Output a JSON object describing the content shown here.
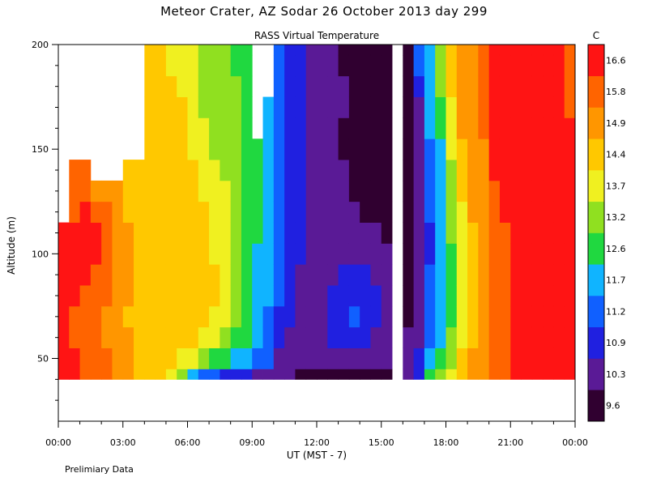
{
  "header": {
    "title": "Meteor Crater, AZ  Sodar  26 October 2013  day 299",
    "subtitle": "RASS Virtual Temperature",
    "footnote": "Prelimiary Data"
  },
  "chart_data": {
    "type": "heatmap",
    "title": "Meteor Crater, AZ  Sodar  26 October 2013  day 299",
    "subtitle": "RASS Virtual Temperature",
    "xlabel": "UT  (MST - 7)",
    "ylabel": "Altitude (m)",
    "x_tick_labels": [
      "00:00",
      "03:00",
      "06:00",
      "09:00",
      "12:00",
      "15:00",
      "18:00",
      "21:00",
      "00:00"
    ],
    "x_ticks_hours": [
      0,
      3,
      6,
      9,
      12,
      15,
      18,
      21,
      24
    ],
    "xlim_hours": [
      0,
      24
    ],
    "y_ticks": [
      50,
      100,
      150,
      200
    ],
    "ylim": [
      20,
      200
    ],
    "colorbar": {
      "unit": "C",
      "labels": [
        "9.6",
        "10.3",
        "10.9",
        "11.2",
        "11.7",
        "12.6",
        "13.2",
        "13.7",
        "14.4",
        "14.9",
        "15.8",
        "16.6"
      ],
      "bins": [
        {
          "min": 9.6,
          "color": "#300030"
        },
        {
          "min": 10.3,
          "color": "#5a1a96"
        },
        {
          "min": 10.9,
          "color": "#2020e0"
        },
        {
          "min": 11.2,
          "color": "#1060ff"
        },
        {
          "min": 11.7,
          "color": "#10b4ff"
        },
        {
          "min": 12.6,
          "color": "#20d840"
        },
        {
          "min": 13.2,
          "color": "#90e020"
        },
        {
          "min": 13.7,
          "color": "#f0f020"
        },
        {
          "min": 14.4,
          "color": "#ffc800"
        },
        {
          "min": 14.9,
          "color": "#ff9600"
        },
        {
          "min": 15.8,
          "color": "#ff6400"
        },
        {
          "min": 16.6,
          "color": "#ff1414"
        }
      ]
    },
    "altitudes_m": [
      40,
      50,
      60,
      70,
      80,
      90,
      100,
      110,
      120,
      130,
      140,
      150,
      160,
      170,
      180,
      190,
      200
    ],
    "times_hours": [
      0,
      0.5,
      1,
      1.5,
      2,
      2.5,
      3,
      3.5,
      4,
      4.5,
      5,
      5.5,
      6,
      6.5,
      7,
      7.5,
      8,
      8.5,
      9,
      9.5,
      10,
      10.5,
      11,
      11.5,
      12,
      12.5,
      13,
      13.5,
      14,
      14.5,
      15,
      15.5,
      16,
      16.5,
      17,
      17.5,
      18,
      18.5,
      19,
      19.5,
      20,
      20.5,
      21,
      21.5,
      22,
      22.5,
      23,
      23.5
    ],
    "temperature_profiles_c": [
      [
        16.7,
        16.7,
        16.7,
        16.7,
        16.7,
        16.7,
        16.7,
        16.7,
        null,
        null,
        null,
        null,
        null,
        null,
        null,
        null,
        null
      ],
      [
        16.6,
        16.6,
        16.0,
        16.0,
        16.6,
        16.6,
        16.6,
        16.6,
        16.0,
        16.0,
        16.0,
        null,
        null,
        null,
        null,
        null,
        null
      ],
      [
        16.2,
        16.0,
        15.9,
        15.9,
        16.0,
        16.6,
        16.6,
        16.6,
        16.6,
        16.0,
        16.0,
        null,
        null,
        null,
        null,
        null,
        null
      ],
      [
        16.0,
        15.9,
        15.8,
        15.8,
        15.9,
        16.0,
        16.6,
        16.6,
        16.0,
        15.0,
        null,
        null,
        null,
        null,
        null,
        null,
        null
      ],
      [
        15.9,
        15.8,
        15.6,
        15.6,
        15.8,
        15.9,
        16.0,
        16.0,
        15.9,
        14.9,
        null,
        null,
        null,
        null,
        null,
        null,
        null
      ],
      [
        15.5,
        15.2,
        15.0,
        14.9,
        15.0,
        15.2,
        15.5,
        15.5,
        15.0,
        14.9,
        null,
        null,
        null,
        null,
        null,
        null,
        null
      ],
      [
        15.0,
        14.9,
        14.9,
        14.8,
        14.9,
        15.0,
        15.0,
        14.9,
        14.8,
        14.8,
        14.5,
        null,
        null,
        null,
        null,
        null,
        null
      ],
      [
        14.5,
        14.6,
        14.6,
        14.6,
        14.6,
        14.5,
        14.5,
        14.6,
        14.6,
        14.5,
        14.5,
        null,
        null,
        null,
        null,
        null,
        null
      ],
      [
        14.4,
        14.5,
        14.4,
        14.4,
        14.4,
        14.4,
        14.4,
        14.5,
        14.5,
        14.5,
        14.5,
        14.5,
        14.5,
        14.5,
        14.5,
        14.5,
        14.5
      ],
      [
        14.4,
        14.4,
        14.4,
        14.4,
        14.4,
        14.4,
        14.4,
        14.4,
        14.4,
        14.4,
        14.4,
        14.4,
        14.5,
        14.5,
        14.5,
        14.5,
        14.5
      ],
      [
        14.3,
        14.4,
        14.4,
        14.4,
        14.4,
        14.4,
        14.4,
        14.4,
        14.4,
        14.4,
        14.4,
        14.4,
        14.4,
        14.4,
        14.4,
        14.0,
        13.8
      ],
      [
        13.5,
        14.0,
        14.4,
        14.4,
        14.4,
        14.4,
        14.4,
        14.4,
        14.4,
        14.4,
        14.4,
        14.4,
        14.4,
        14.4,
        14.0,
        13.8,
        13.8
      ],
      [
        12.5,
        13.8,
        14.4,
        14.4,
        14.4,
        14.4,
        14.4,
        14.4,
        14.4,
        14.4,
        14.4,
        14.0,
        13.8,
        13.8,
        13.8,
        13.8,
        13.8
      ],
      [
        11.5,
        13.5,
        14.0,
        14.4,
        14.4,
        14.4,
        14.4,
        14.4,
        14.4,
        14.0,
        13.8,
        13.8,
        13.8,
        13.5,
        13.5,
        13.2,
        13.2
      ],
      [
        11.2,
        12.8,
        13.8,
        14.0,
        14.4,
        14.4,
        14.0,
        14.0,
        14.0,
        13.8,
        13.8,
        13.5,
        13.3,
        13.3,
        13.3,
        13.2,
        13.2
      ],
      [
        11.0,
        12.6,
        13.5,
        13.8,
        13.9,
        13.9,
        13.8,
        13.8,
        13.8,
        13.8,
        13.5,
        13.3,
        13.3,
        13.2,
        13.2,
        13.2,
        13.2
      ],
      [
        11.0,
        12.0,
        13.0,
        13.3,
        13.5,
        13.5,
        13.5,
        13.4,
        13.3,
        13.3,
        13.3,
        13.2,
        13.2,
        13.2,
        13.2,
        12.8,
        12.8
      ],
      [
        10.9,
        11.7,
        12.6,
        12.7,
        12.8,
        12.8,
        12.8,
        12.8,
        12.8,
        12.8,
        12.8,
        12.8,
        12.8,
        12.8,
        12.8,
        12.7,
        12.7
      ],
      [
        10.7,
        11.5,
        11.9,
        12.0,
        12.3,
        12.5,
        12.5,
        12.6,
        12.6,
        12.6,
        12.6,
        12.6,
        null,
        null,
        null,
        null,
        null
      ],
      [
        10.5,
        11.2,
        11.4,
        11.5,
        11.8,
        11.9,
        12.0,
        12.2,
        12.3,
        12.4,
        12.4,
        12.3,
        12.5,
        12.4,
        null,
        null,
        null
      ],
      [
        10.5,
        10.6,
        11.0,
        11.1,
        11.2,
        11.3,
        11.4,
        11.5,
        11.5,
        11.4,
        11.3,
        11.2,
        11.2,
        11.2,
        11.2,
        11.2,
        11.2
      ],
      [
        10.4,
        10.5,
        10.8,
        10.9,
        10.9,
        10.9,
        11.0,
        11.0,
        10.9,
        10.9,
        10.9,
        10.9,
        11.0,
        11.0,
        11.1,
        11.1,
        11.1
      ],
      [
        10.0,
        10.4,
        10.6,
        10.7,
        10.8,
        10.8,
        10.9,
        10.9,
        10.9,
        10.9,
        10.9,
        10.9,
        10.9,
        10.9,
        11.0,
        11.0,
        11.0
      ],
      [
        9.9,
        10.3,
        10.5,
        10.6,
        10.7,
        10.7,
        10.7,
        10.8,
        10.8,
        10.8,
        10.6,
        10.5,
        10.5,
        10.6,
        10.7,
        10.8,
        10.8
      ],
      [
        9.8,
        10.3,
        10.4,
        10.5,
        10.6,
        10.6,
        10.6,
        10.6,
        10.5,
        10.5,
        10.5,
        10.5,
        10.4,
        10.4,
        10.4,
        10.4,
        10.4
      ],
      [
        10.0,
        10.6,
        11.0,
        11.0,
        10.9,
        10.6,
        10.5,
        10.5,
        10.4,
        10.4,
        10.4,
        10.3,
        10.4,
        10.4,
        10.4,
        10.4,
        10.4
      ],
      [
        10.2,
        10.8,
        11.0,
        11.1,
        11.0,
        10.9,
        10.6,
        10.5,
        10.4,
        10.3,
        10.3,
        10.2,
        10.2,
        10.3,
        10.3,
        10.0,
        9.8
      ],
      [
        9.9,
        10.5,
        10.9,
        11.2,
        11.0,
        10.9,
        10.6,
        10.4,
        10.3,
        10.2,
        10.1,
        10.0,
        9.9,
        9.9,
        9.8,
        9.8,
        9.8
      ],
      [
        9.8,
        10.3,
        10.9,
        11.0,
        11.0,
        10.9,
        10.5,
        10.3,
        10.2,
        10.0,
        9.9,
        9.8,
        9.8,
        9.8,
        9.7,
        9.7,
        9.7
      ],
      [
        9.8,
        10.3,
        10.6,
        10.9,
        10.9,
        10.8,
        10.5,
        10.3,
        10.0,
        9.9,
        9.8,
        9.8,
        9.7,
        9.7,
        9.7,
        9.7,
        9.7
      ],
      [
        10.0,
        10.4,
        10.6,
        10.7,
        10.6,
        10.5,
        10.4,
        10.2,
        10.0,
        9.9,
        9.8,
        9.8,
        9.7,
        9.7,
        9.7,
        9.7,
        9.7
      ],
      [
        null,
        null,
        null,
        null,
        null,
        null,
        null,
        null,
        null,
        null,
        null,
        null,
        null,
        null,
        null,
        null,
        null
      ],
      [
        10.4,
        10.3,
        10.3,
        10.2,
        10.0,
        9.9,
        9.8,
        9.8,
        9.8,
        9.8,
        9.8,
        9.8,
        9.8,
        9.8,
        9.9,
        10.0,
        10.2
      ],
      [
        11.0,
        10.9,
        10.6,
        10.5,
        10.5,
        10.4,
        10.4,
        10.4,
        10.4,
        10.3,
        10.3,
        10.3,
        10.5,
        10.8,
        11.0,
        11.2,
        11.5
      ],
      [
        12.6,
        12.0,
        11.5,
        11.3,
        11.2,
        11.2,
        11.1,
        11.1,
        11.2,
        11.3,
        11.3,
        11.5,
        11.7,
        11.9,
        12.0,
        12.2,
        12.4
      ],
      [
        13.2,
        12.7,
        12.3,
        12.0,
        11.8,
        11.8,
        11.8,
        11.9,
        12.0,
        12.2,
        12.4,
        12.5,
        12.8,
        13.0,
        13.2,
        13.4,
        13.6
      ],
      [
        14.0,
        13.5,
        13.2,
        13.0,
        12.9,
        12.9,
        13.0,
        13.2,
        13.3,
        13.5,
        13.6,
        13.8,
        14.0,
        14.2,
        14.4,
        14.5,
        14.8
      ],
      [
        14.7,
        14.4,
        14.1,
        13.9,
        13.8,
        13.8,
        13.9,
        14.0,
        14.2,
        14.4,
        14.6,
        14.7,
        14.9,
        15.0,
        15.2,
        15.0,
        14.9
      ],
      [
        15.2,
        14.9,
        14.8,
        14.6,
        14.5,
        14.5,
        14.6,
        14.7,
        14.9,
        15.0,
        15.2,
        15.3,
        15.4,
        15.3,
        15.2,
        15.1,
        15.0
      ],
      [
        15.5,
        15.3,
        15.2,
        15.0,
        14.9,
        14.9,
        15.0,
        15.1,
        15.3,
        15.4,
        15.5,
        15.6,
        15.8,
        16.0,
        16.2,
        16.4,
        16.5
      ],
      [
        16.0,
        15.9,
        15.9,
        15.9,
        15.8,
        15.9,
        16.0,
        16.1,
        16.2,
        16.4,
        16.6,
        16.7,
        16.8,
        16.9,
        16.9,
        16.9,
        16.9
      ],
      [
        16.0,
        15.9,
        15.9,
        15.8,
        15.9,
        15.9,
        16.0,
        16.3,
        16.6,
        16.7,
        16.8,
        16.9,
        16.9,
        16.9,
        16.9,
        16.9,
        16.9
      ],
      [
        16.7,
        16.7,
        16.7,
        16.7,
        16.7,
        16.7,
        16.7,
        16.7,
        16.7,
        16.7,
        16.8,
        16.9,
        16.9,
        16.9,
        16.9,
        16.9,
        16.9
      ],
      [
        16.8,
        16.8,
        16.8,
        16.8,
        16.8,
        16.8,
        16.8,
        16.8,
        16.8,
        16.8,
        16.8,
        16.8,
        16.9,
        16.9,
        16.9,
        16.9,
        16.9
      ],
      [
        16.8,
        16.8,
        16.8,
        16.8,
        16.8,
        16.8,
        16.8,
        16.8,
        16.8,
        16.8,
        16.8,
        16.8,
        16.8,
        16.8,
        16.8,
        16.8,
        16.8
      ],
      [
        16.8,
        16.8,
        16.8,
        16.8,
        16.8,
        16.8,
        16.8,
        16.8,
        16.8,
        16.8,
        16.8,
        16.8,
        16.8,
        16.8,
        16.8,
        16.8,
        16.8
      ],
      [
        16.8,
        16.8,
        16.8,
        16.8,
        16.8,
        16.8,
        16.8,
        16.8,
        16.8,
        16.8,
        16.8,
        16.8,
        16.8,
        16.7,
        16.7,
        16.7,
        16.7
      ],
      [
        16.8,
        16.8,
        16.8,
        16.8,
        16.8,
        16.8,
        16.8,
        16.8,
        16.8,
        16.8,
        16.8,
        16.7,
        16.6,
        16.0,
        16.0,
        16.0,
        15.9
      ]
    ]
  }
}
